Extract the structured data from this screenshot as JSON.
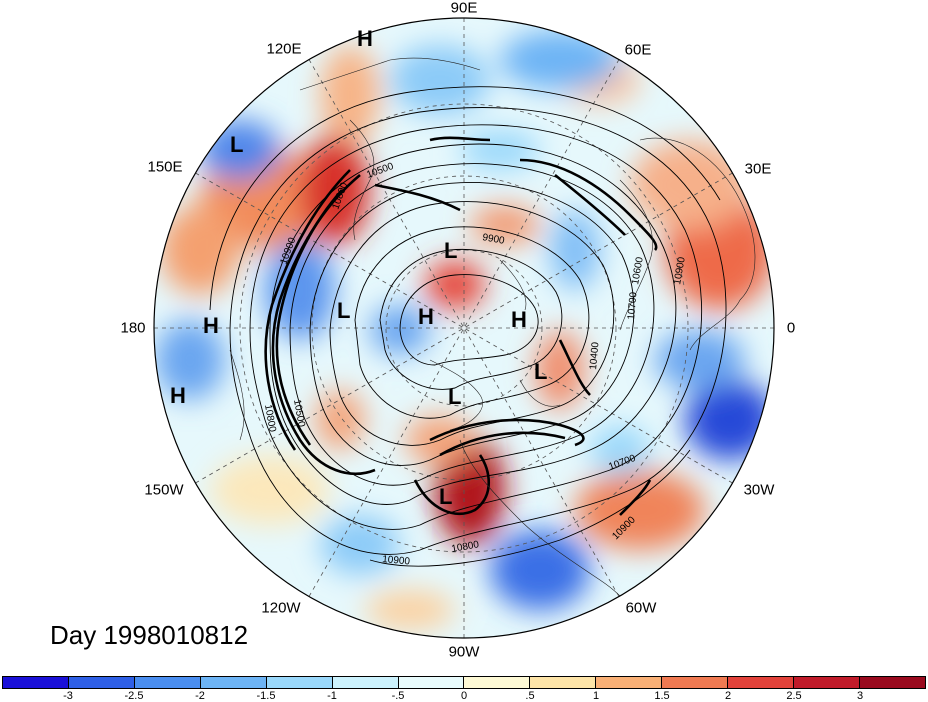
{
  "title": "Day 1998010812",
  "longitude_labels": [
    {
      "text": "90E",
      "key": "n"
    },
    {
      "text": "60E",
      "key": "nne"
    },
    {
      "text": "30E",
      "key": "ene"
    },
    {
      "text": "0",
      "key": "e"
    },
    {
      "text": "30W",
      "key": "ese"
    },
    {
      "text": "60W",
      "key": "sse"
    },
    {
      "text": "90W",
      "key": "s"
    },
    {
      "text": "120W",
      "key": "ssw"
    },
    {
      "text": "150W",
      "key": "wsw"
    },
    {
      "text": "180",
      "key": "w"
    },
    {
      "text": "150E",
      "key": "wnw"
    },
    {
      "text": "120E",
      "key": "nnw"
    }
  ],
  "pressure_centers": [
    {
      "label": "H",
      "name": "high-center-top"
    },
    {
      "label": "L",
      "name": "low-center-northwest"
    },
    {
      "label": "L",
      "name": "low-center-north-pole-a"
    },
    {
      "label": "L",
      "name": "low-center-west-a"
    },
    {
      "label": "H",
      "name": "high-center-pole-a"
    },
    {
      "label": "H",
      "name": "high-center-pole-b"
    },
    {
      "label": "H",
      "name": "high-center-dateline"
    },
    {
      "label": "H",
      "name": "high-center-west"
    },
    {
      "label": "L",
      "name": "low-center-east"
    },
    {
      "label": "L",
      "name": "low-center-canada"
    },
    {
      "label": "L",
      "name": "low-center-south"
    }
  ],
  "contour_labels": [
    "10500",
    "9900",
    "10800",
    "10900",
    "10600",
    "10900",
    "10700",
    "10400",
    "10800",
    "10500",
    "10700",
    "10900",
    "10900",
    "10800"
  ],
  "colorbar": {
    "colors": [
      "#1a10d8",
      "#2e5fe6",
      "#4a8ef0",
      "#6db4f5",
      "#9ad8fb",
      "#ccf2fd",
      "#e8fbfc",
      "#fdf9d5",
      "#fde4a8",
      "#f9b076",
      "#f07a52",
      "#e2423a",
      "#c11b2a",
      "#9a0a1e"
    ],
    "labels": [
      "-3",
      "-2.5",
      "-2",
      "-1.5",
      "-1",
      "-.5",
      "0",
      ".5",
      "1",
      "1.5",
      "2",
      "2.5",
      "3"
    ]
  }
}
